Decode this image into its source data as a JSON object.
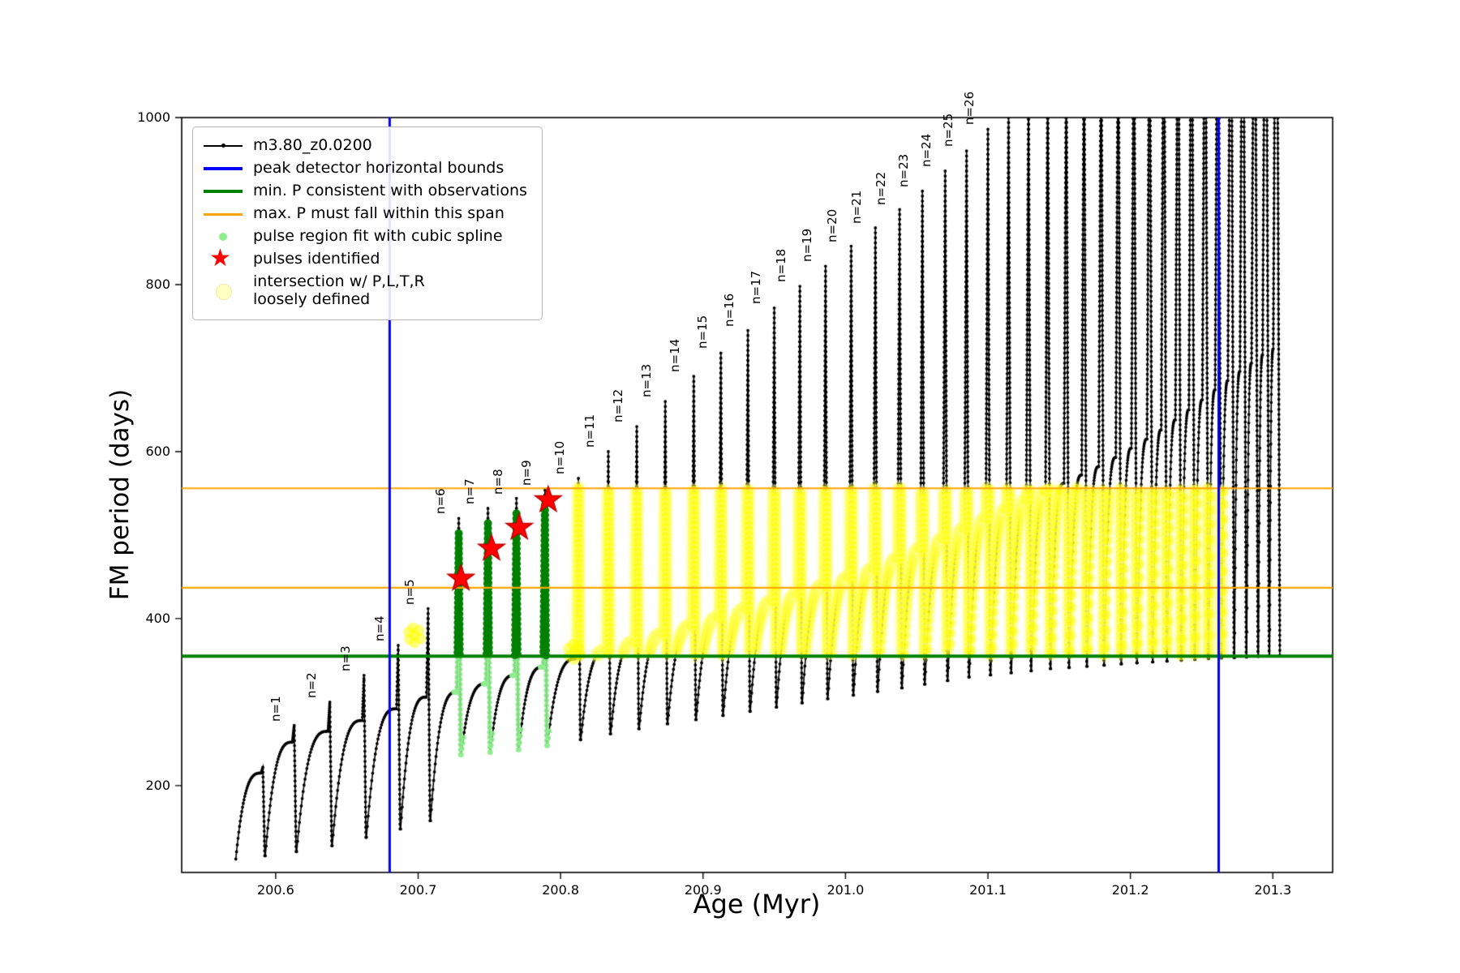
{
  "figure": {
    "xlabel": "Age (Myr)",
    "ylabel": "FM period (days)"
  },
  "legend": {
    "star_char": "★",
    "entries": [
      {
        "type": "line-dot",
        "color": "#000000",
        "label": "m3.80_z0.0200"
      },
      {
        "type": "line",
        "color": "#0000ff",
        "label": "peak detector horizontal bounds"
      },
      {
        "type": "line",
        "color": "#008000",
        "label": "min. P consistent with observations"
      },
      {
        "type": "line",
        "color": "#ffa500",
        "label": "max. P must fall within this span"
      },
      {
        "type": "dot",
        "color": "#90ee90",
        "label": "pulse region fit with cubic spline"
      },
      {
        "type": "star",
        "color": "#ff0000",
        "label": "pulses identified"
      },
      {
        "type": "bigdot",
        "color": "#ffffc2",
        "label": "intersection w/ P,L,T,R",
        "label2": "loosely defined"
      }
    ]
  },
  "colors": {
    "series": "#000000",
    "peak_bounds": "#0000ff",
    "min_p": "#008000",
    "max_p": "#ffa500",
    "pulse_region_fit": "#90ee90",
    "pulse_region_band": "#008000",
    "pulses_identified": "#ff0000",
    "intersection": "#ffff00"
  },
  "chart_data": {
    "type": "line",
    "title": "",
    "xlabel": "Age (Myr)",
    "ylabel": "FM period (days)",
    "series_label": "m3.80_z0.0200",
    "xlim": [
      200.534,
      201.342
    ],
    "ylim": [
      96,
      1000
    ],
    "x_ticks": [
      "200.6",
      "200.7",
      "200.8",
      "200.9",
      "201.0",
      "201.1",
      "201.2",
      "201.3"
    ],
    "y_ticks": [
      "200",
      "400",
      "600",
      "800",
      "1000"
    ],
    "grid": false,
    "legend_position": "upper left",
    "vertical_lines": {
      "color": "#0000ff",
      "width": 3,
      "x": [
        200.68,
        201.262
      ]
    },
    "horizontal_lines": [
      {
        "name": "max P span lower",
        "color": "#ffa500",
        "width": 2.2,
        "y": 437
      },
      {
        "name": "max P span upper",
        "color": "#ffa500",
        "width": 2.2,
        "y": 556
      },
      {
        "name": "min P consistent",
        "color": "#008000",
        "width": 4,
        "y": 355
      }
    ],
    "series_start_x": 200.572,
    "pulses": [
      {
        "x": 200.591,
        "peak": 222,
        "label": null
      },
      {
        "x": 200.613,
        "peak": 272,
        "label": "n=1"
      },
      {
        "x": 200.638,
        "peak": 300,
        "label": "n=2"
      },
      {
        "x": 200.662,
        "peak": 332,
        "label": "n=3"
      },
      {
        "x": 200.686,
        "peak": 368,
        "label": "n=4"
      },
      {
        "x": 200.707,
        "peak": 412,
        "label": "n=5"
      },
      {
        "x": 200.7285,
        "peak": 520,
        "label": "n=6"
      },
      {
        "x": 200.749,
        "peak": 532,
        "label": "n=7"
      },
      {
        "x": 200.769,
        "peak": 544,
        "label": "n=8"
      },
      {
        "x": 200.789,
        "peak": 554,
        "label": "n=9"
      },
      {
        "x": 200.8125,
        "peak": 568,
        "label": "n=10"
      },
      {
        "x": 200.8335,
        "peak": 600,
        "label": "n=11"
      },
      {
        "x": 200.8535,
        "peak": 630,
        "label": "n=12"
      },
      {
        "x": 200.8735,
        "peak": 660,
        "label": "n=13"
      },
      {
        "x": 200.8935,
        "peak": 690,
        "label": "n=14"
      },
      {
        "x": 200.9125,
        "peak": 718,
        "label": "n=15"
      },
      {
        "x": 200.9315,
        "peak": 745,
        "label": "n=16"
      },
      {
        "x": 200.95,
        "peak": 772,
        "label": "n=17"
      },
      {
        "x": 200.968,
        "peak": 798,
        "label": "n=18"
      },
      {
        "x": 200.986,
        "peak": 822,
        "label": "n=19"
      },
      {
        "x": 201.004,
        "peak": 846,
        "label": "n=20"
      },
      {
        "x": 201.021,
        "peak": 868,
        "label": "n=21"
      },
      {
        "x": 201.038,
        "peak": 890,
        "label": "n=22"
      },
      {
        "x": 201.054,
        "peak": 912,
        "label": "n=23"
      },
      {
        "x": 201.07,
        "peak": 936,
        "label": "n=24"
      },
      {
        "x": 201.085,
        "peak": 960,
        "label": "n=25"
      },
      {
        "x": 201.1,
        "peak": 986,
        "label": "n=26"
      },
      {
        "x": 201.1145,
        "peak": 1012,
        "label": null
      },
      {
        "x": 201.1285,
        "peak": 1040,
        "label": null
      },
      {
        "x": 201.142,
        "peak": 1065,
        "label": null
      },
      {
        "x": 201.155,
        "peak": 1090,
        "label": null
      },
      {
        "x": 201.1675,
        "peak": 1112,
        "label": null
      },
      {
        "x": 201.1795,
        "peak": 1134,
        "label": null
      },
      {
        "x": 201.1915,
        "peak": 1156,
        "label": null
      },
      {
        "x": 201.2025,
        "peak": 1178,
        "label": null
      },
      {
        "x": 201.2135,
        "peak": 1200,
        "label": null
      },
      {
        "x": 201.2235,
        "peak": 1222,
        "label": null
      },
      {
        "x": 201.2335,
        "peak": 1244,
        "label": null
      },
      {
        "x": 201.243,
        "peak": 1266,
        "label": null
      },
      {
        "x": 201.2525,
        "peak": 1288,
        "label": null
      },
      {
        "x": 201.2615,
        "peak": 1310,
        "label": null
      },
      {
        "x": 201.2705,
        "peak": 1332,
        "label": null
      },
      {
        "x": 201.279,
        "peak": 1354,
        "label": null
      },
      {
        "x": 201.2872,
        "peak": 1376,
        "label": null
      },
      {
        "x": 201.295,
        "peak": 1398,
        "label": null
      },
      {
        "x": 201.3025,
        "peak": 1420,
        "label": null
      }
    ],
    "trough_anchors": [
      [
        0,
        112
      ],
      [
        1,
        116
      ],
      [
        2,
        121
      ],
      [
        3,
        128
      ],
      [
        4,
        138
      ],
      [
        5,
        148
      ],
      [
        6,
        158
      ],
      [
        7,
        237
      ],
      [
        8,
        240
      ],
      [
        9,
        243
      ],
      [
        10,
        248
      ],
      [
        12,
        262
      ],
      [
        14,
        274
      ],
      [
        16,
        284
      ],
      [
        18,
        294
      ],
      [
        20,
        304
      ],
      [
        23,
        317
      ],
      [
        26,
        330
      ],
      [
        30,
        340
      ],
      [
        35,
        347
      ],
      [
        40,
        352
      ],
      [
        46,
        356
      ]
    ],
    "plateau_anchors": [
      [
        0,
        215
      ],
      [
        1,
        252
      ],
      [
        2,
        265
      ],
      [
        3,
        278
      ],
      [
        4,
        292
      ],
      [
        5,
        306
      ],
      [
        6,
        312
      ],
      [
        7,
        322
      ],
      [
        8,
        332
      ],
      [
        9,
        342
      ],
      [
        10,
        352
      ],
      [
        11,
        362
      ],
      [
        12,
        372
      ],
      [
        13,
        382
      ],
      [
        14,
        392
      ],
      [
        15,
        402
      ],
      [
        16,
        412
      ],
      [
        17,
        421
      ],
      [
        18,
        430
      ],
      [
        19,
        440
      ],
      [
        20,
        450
      ],
      [
        21,
        460
      ],
      [
        22,
        472
      ],
      [
        23,
        484
      ],
      [
        24,
        496
      ],
      [
        25,
        508
      ],
      [
        26,
        520
      ],
      [
        28,
        542
      ],
      [
        30,
        562
      ],
      [
        32,
        582
      ],
      [
        34,
        604
      ],
      [
        36,
        626
      ],
      [
        38,
        650
      ],
      [
        40,
        674
      ],
      [
        42,
        696
      ],
      [
        44,
        716
      ],
      [
        46,
        730
      ]
    ],
    "pulse_regions": [
      {
        "x": 200.7285,
        "top": 505
      },
      {
        "x": 200.749,
        "top": 518
      },
      {
        "x": 200.769,
        "top": 530
      },
      {
        "x": 200.789,
        "top": 543
      }
    ],
    "pulse_region_y_bottom": 237,
    "stars": [
      [
        200.73,
        448
      ],
      [
        200.7515,
        484
      ],
      [
        200.771,
        509
      ],
      [
        200.7913,
        542
      ]
    ],
    "star_color": "#ff0000",
    "yellow_band": {
      "x_range": [
        200.807,
        201.272
      ],
      "y_range": [
        356,
        556
      ]
    },
    "extra_yellow": [
      [
        200.6975,
        380
      ],
      [
        200.8095,
        360
      ]
    ]
  }
}
